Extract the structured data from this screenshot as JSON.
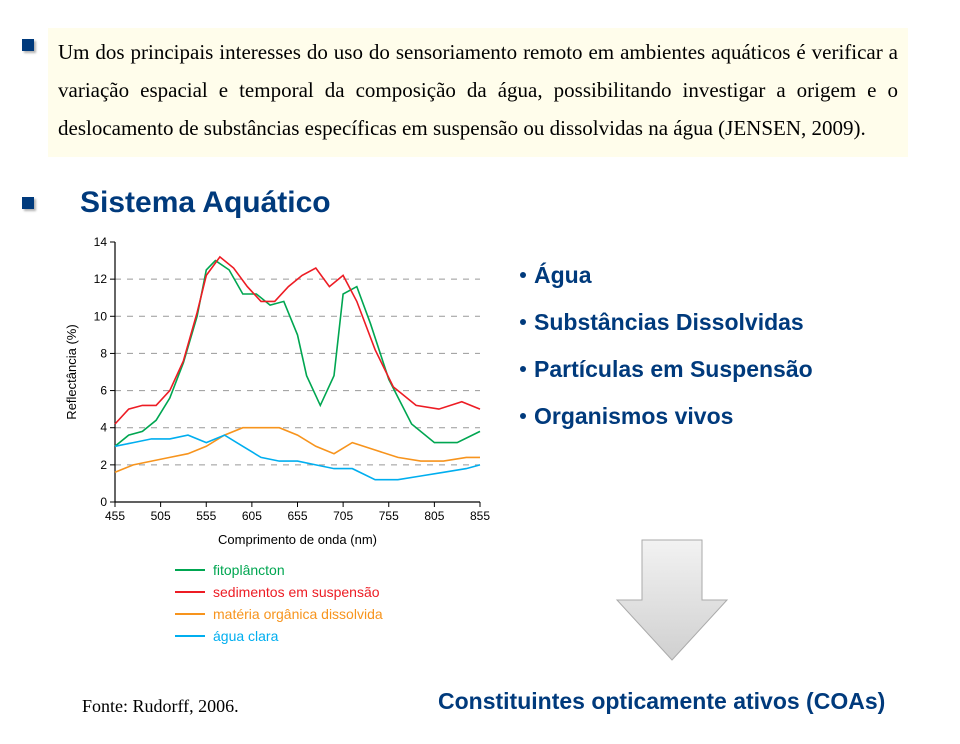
{
  "paragraph": "Um dos principais interesses do uso do sensoriamento remoto em ambientes aquáticos é verificar a variação espacial e temporal da composição da água, possibilitando investigar a origem e o deslocamento de substâncias específicas em suspensão ou dissolvidas na água (JENSEN, 2009).",
  "heading": "Sistema Aquático",
  "bullets": {
    "items": [
      "Água",
      "Substâncias Dissolvidas",
      "Partículas em Suspensão",
      "Organismos vivos"
    ]
  },
  "caption_left": "Fonte: Rudorff, 2006.",
  "caption_right": "Constituintes opticamente ativos (COAs)",
  "chart": {
    "type": "line",
    "ylabel": "Reflectância (%)",
    "xlabel": "Comprimento de onda (nm)",
    "xlim": [
      455,
      855
    ],
    "ylim": [
      0,
      14
    ],
    "xticks": [
      455,
      505,
      555,
      605,
      655,
      705,
      755,
      805,
      855
    ],
    "yticks": [
      0,
      2,
      4,
      6,
      8,
      10,
      12,
      14
    ],
    "grid_y": [
      2,
      4,
      6,
      8,
      10,
      12
    ],
    "grid_color": "#999999",
    "axis_color": "#000000",
    "series": [
      {
        "name": "fitoplâncton",
        "color": "#00a651",
        "stroke_width": 1.6,
        "x": [
          455,
          470,
          485,
          500,
          515,
          530,
          545,
          555,
          565,
          580,
          595,
          610,
          625,
          640,
          655,
          665,
          680,
          695,
          705,
          720,
          735,
          755,
          780,
          805,
          830,
          855
        ],
        "y": [
          3.0,
          3.6,
          3.8,
          4.4,
          5.6,
          7.5,
          10.0,
          12.5,
          13.0,
          12.5,
          11.2,
          11.2,
          10.6,
          10.8,
          9.0,
          6.8,
          5.2,
          6.8,
          11.2,
          11.6,
          9.6,
          6.6,
          4.2,
          3.2,
          3.2,
          3.8
        ]
      },
      {
        "name": "sedimentos em suspensão",
        "color": "#ed1c24",
        "stroke_width": 1.6,
        "x": [
          455,
          470,
          485,
          500,
          515,
          530,
          545,
          555,
          570,
          585,
          600,
          615,
          630,
          645,
          660,
          675,
          690,
          705,
          720,
          740,
          760,
          785,
          810,
          835,
          855
        ],
        "y": [
          4.2,
          5.0,
          5.2,
          5.2,
          6.0,
          7.6,
          10.2,
          12.2,
          13.2,
          12.6,
          11.6,
          10.8,
          10.8,
          11.6,
          12.2,
          12.6,
          11.6,
          12.2,
          10.8,
          8.2,
          6.2,
          5.2,
          5.0,
          5.4,
          5.0
        ]
      },
      {
        "name": "matéria orgânica dissolvida",
        "color": "#f7941d",
        "stroke_width": 1.6,
        "x": [
          455,
          475,
          495,
          515,
          535,
          555,
          575,
          595,
          615,
          635,
          655,
          675,
          695,
          715,
          740,
          765,
          790,
          815,
          840,
          855
        ],
        "y": [
          1.6,
          2.0,
          2.2,
          2.4,
          2.6,
          3.0,
          3.6,
          4.0,
          4.0,
          4.0,
          3.6,
          3.0,
          2.6,
          3.2,
          2.8,
          2.4,
          2.2,
          2.2,
          2.4,
          2.4
        ]
      },
      {
        "name": "água clara",
        "color": "#00aeef",
        "stroke_width": 1.6,
        "x": [
          455,
          475,
          495,
          515,
          535,
          555,
          575,
          595,
          615,
          635,
          655,
          675,
          695,
          715,
          740,
          765,
          790,
          815,
          840,
          855
        ],
        "y": [
          3.0,
          3.2,
          3.4,
          3.4,
          3.6,
          3.2,
          3.6,
          3.0,
          2.4,
          2.2,
          2.2,
          2.0,
          1.8,
          1.8,
          1.2,
          1.2,
          1.4,
          1.6,
          1.8,
          2.0
        ]
      }
    ],
    "legend": [
      {
        "label": "fitoplâncton",
        "color": "#00a651"
      },
      {
        "label": "sedimentos em suspensão",
        "color": "#ed1c24"
      },
      {
        "label": "matéria orgânica dissolvida",
        "color": "#f7941d"
      },
      {
        "label": "água clara",
        "color": "#00aeef"
      }
    ]
  },
  "arrow": {
    "fill": "#e6e6e6",
    "stroke": "#aaaaaa"
  }
}
